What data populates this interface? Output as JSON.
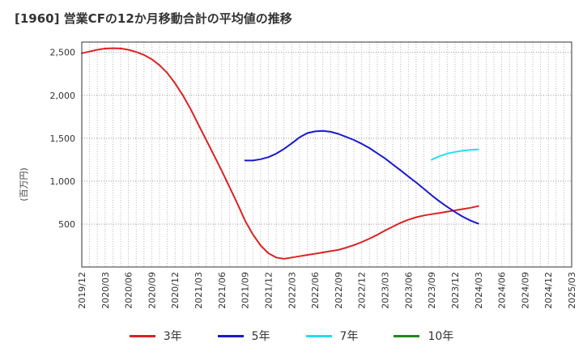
{
  "chart_data": {
    "type": "line",
    "title": "[1960]  営業CFの12か月移動合計の平均値の推移",
    "ylabel": "(百万円)",
    "xlabel": "",
    "ylim": [
      0,
      2620
    ],
    "y_ticks": [
      500,
      1000,
      1500,
      2000,
      2500
    ],
    "y_tick_labels": [
      "500",
      "1,000",
      "1,500",
      "2,000",
      "2,500"
    ],
    "x_tick_labels": [
      "2019/12",
      "2020/03",
      "2020/06",
      "2020/09",
      "2020/12",
      "2021/03",
      "2021/06",
      "2021/09",
      "2021/12",
      "2022/03",
      "2022/06",
      "2022/09",
      "2022/12",
      "2023/03",
      "2023/06",
      "2023/09",
      "2023/12",
      "2024/03",
      "2024/06",
      "2024/09",
      "2024/12",
      "2025/03"
    ],
    "grid": true,
    "legend_position": "bottom",
    "series": [
      {
        "name": "3年",
        "color": "#dd2222",
        "x": [
          "2019/12",
          "2020/01",
          "2020/02",
          "2020/03",
          "2020/04",
          "2020/05",
          "2020/06",
          "2020/07",
          "2020/08",
          "2020/09",
          "2020/10",
          "2020/11",
          "2020/12",
          "2021/01",
          "2021/02",
          "2021/03",
          "2021/04",
          "2021/05",
          "2021/06",
          "2021/07",
          "2021/08",
          "2021/09",
          "2021/10",
          "2021/11",
          "2021/12",
          "2022/01",
          "2022/02",
          "2022/03",
          "2022/04",
          "2022/05",
          "2022/06",
          "2022/07",
          "2022/08",
          "2022/09",
          "2022/10",
          "2022/11",
          "2022/12",
          "2023/01",
          "2023/02",
          "2023/03",
          "2023/04",
          "2023/05",
          "2023/06",
          "2023/07",
          "2023/08",
          "2023/09",
          "2023/10",
          "2023/11",
          "2023/12",
          "2024/01",
          "2024/02",
          "2024/03"
        ],
        "values": [
          2490,
          2510,
          2530,
          2545,
          2548,
          2546,
          2530,
          2505,
          2470,
          2420,
          2350,
          2260,
          2140,
          2000,
          1840,
          1660,
          1480,
          1300,
          1120,
          930,
          740,
          540,
          380,
          250,
          160,
          110,
          95,
          110,
          125,
          140,
          155,
          170,
          185,
          200,
          225,
          255,
          290,
          330,
          375,
          425,
          470,
          515,
          550,
          580,
          600,
          615,
          630,
          645,
          660,
          675,
          690,
          710
        ]
      },
      {
        "name": "5年",
        "color": "#1a1acc",
        "x": [
          "2021/09",
          "2021/10",
          "2021/11",
          "2021/12",
          "2022/01",
          "2022/02",
          "2022/03",
          "2022/04",
          "2022/05",
          "2022/06",
          "2022/07",
          "2022/08",
          "2022/09",
          "2022/10",
          "2022/11",
          "2022/12",
          "2023/01",
          "2023/02",
          "2023/03",
          "2023/04",
          "2023/05",
          "2023/06",
          "2023/07",
          "2023/08",
          "2023/09",
          "2023/10",
          "2023/11",
          "2023/12",
          "2024/01",
          "2024/02",
          "2024/03"
        ],
        "values": [
          1240,
          1240,
          1255,
          1280,
          1320,
          1375,
          1440,
          1510,
          1560,
          1580,
          1585,
          1575,
          1550,
          1515,
          1480,
          1435,
          1385,
          1325,
          1265,
          1195,
          1125,
          1055,
          985,
          910,
          835,
          765,
          700,
          640,
          585,
          540,
          505
        ]
      },
      {
        "name": "7年",
        "color": "#22ddee",
        "x": [
          "2023/09",
          "2023/10",
          "2023/11",
          "2023/12",
          "2024/01",
          "2024/02",
          "2024/03"
        ],
        "values": [
          1250,
          1290,
          1320,
          1340,
          1355,
          1365,
          1370
        ]
      },
      {
        "name": "10年",
        "color": "#228822",
        "x": [],
        "values": []
      }
    ]
  }
}
